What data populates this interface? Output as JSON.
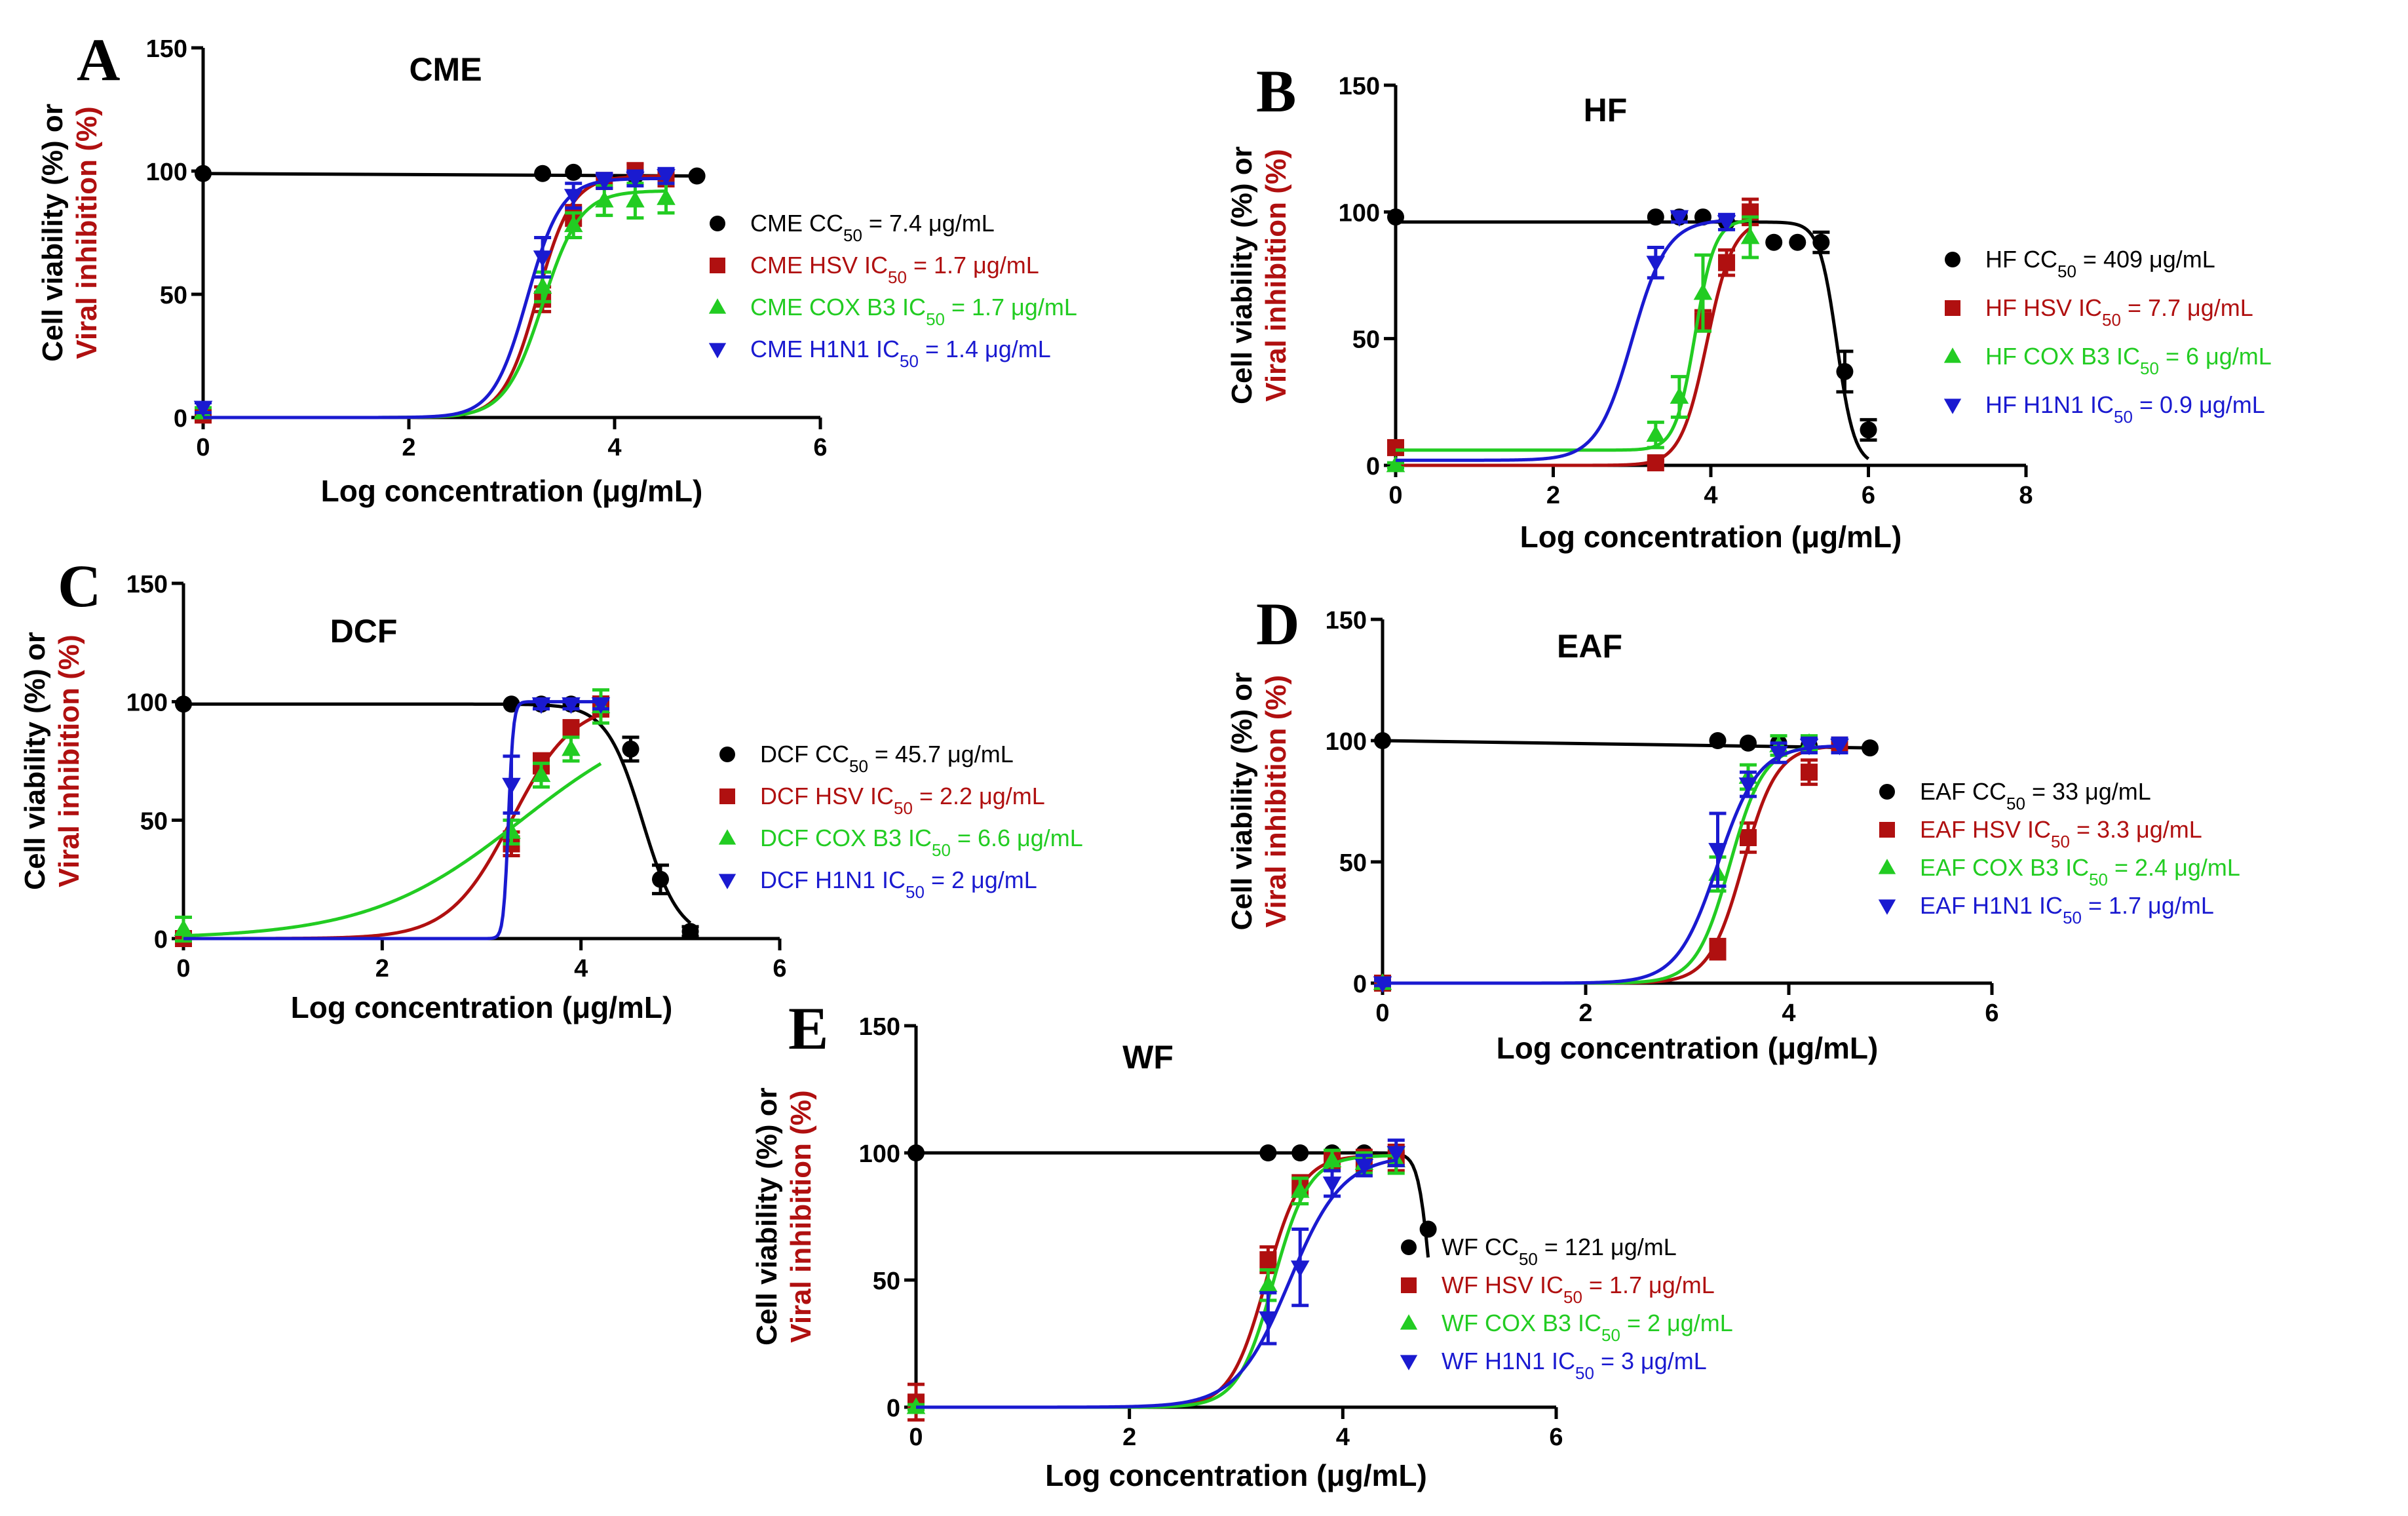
{
  "figure": {
    "ylabel_black": "Cell viability (%) or",
    "ylabel_red": "Viral inhibition (%)",
    "xlabel": "Log concentration  (μg/mL)",
    "colors": {
      "cc50": "#000000",
      "hsv": "#b01010",
      "cox": "#22cc22",
      "h1n1": "#1a1ad0"
    },
    "legend_markers": {
      "cc50": "circle",
      "hsv": "square",
      "cox": "triangle-up",
      "h1n1": "triangle-down"
    }
  },
  "chart_data": [
    {
      "type": "scatter",
      "panel": "A",
      "title": "CME",
      "xlabel": "Log concentration  (μg/mL)",
      "ylabel": "Cell viability (%) or Viral inhibition (%)",
      "xlim": [
        0,
        6
      ],
      "ylim": [
        0,
        150
      ],
      "xticks": [
        0,
        2,
        4,
        6
      ],
      "yticks": [
        0,
        50,
        100,
        150
      ],
      "legend_position": "right",
      "series": [
        {
          "key": "cc50",
          "legend": [
            "CME CC",
            "50",
            " = 7.4 μg/mL"
          ],
          "curve": "plateau",
          "x": [
            0,
            3.3,
            3.6,
            4.2,
            4.5,
            4.8
          ],
          "y": [
            99,
            99,
            99.5,
            98,
            98,
            98
          ]
        },
        {
          "key": "hsv",
          "legend": [
            "CME HSV IC",
            "50",
            " = 1.7 μg/mL"
          ],
          "logic": [
            3.25,
            6,
            0,
            98
          ],
          "x": [
            0,
            3.3,
            3.6,
            3.9,
            4.2,
            4.5
          ],
          "y": [
            1,
            48,
            82,
            96,
            100,
            97
          ],
          "err": [
            1,
            5,
            4,
            3,
            3,
            3
          ]
        },
        {
          "key": "cox",
          "legend": [
            "CME COX B3 IC",
            "50",
            " = 1.7 μg/mL"
          ],
          "logic": [
            3.3,
            5.5,
            0,
            92
          ],
          "x": [
            0,
            3.3,
            3.6,
            3.9,
            4.2,
            4.5
          ],
          "y": [
            2,
            53,
            78,
            88,
            88,
            89
          ],
          "err": [
            2,
            6,
            5,
            6,
            7,
            6
          ]
        },
        {
          "key": "h1n1",
          "legend": [
            "CME H1N1 IC",
            "50",
            " = 1.4 μg/mL"
          ],
          "logic": [
            3.15,
            6,
            0,
            97
          ],
          "x": [
            0,
            3.3,
            3.6,
            3.9,
            4.2,
            4.5
          ],
          "y": [
            4,
            65,
            90,
            96,
            97,
            98
          ],
          "err": [
            2,
            8,
            5,
            3,
            3,
            3
          ]
        }
      ]
    },
    {
      "type": "scatter",
      "panel": "B",
      "title": "HF",
      "xlabel": "Log concentration  (μg/mL)",
      "ylabel": "Cell viability (%) or Viral inhibition (%)",
      "xlim": [
        0,
        8
      ],
      "ylim": [
        0,
        150
      ],
      "xticks": [
        0,
        2,
        4,
        6,
        8
      ],
      "yticks": [
        0,
        50,
        100,
        150
      ],
      "legend_position": "right",
      "series": [
        {
          "key": "cc50",
          "legend": [
            "HF CC",
            "50",
            " = 409 μg/mL"
          ],
          "curve": "drop",
          "drop": [
            5.6,
            9,
            0,
            96
          ],
          "x": [
            0,
            3.3,
            3.6,
            3.9,
            4.2,
            4.8,
            5.1,
            5.4,
            5.7,
            6
          ],
          "y": [
            98,
            98,
            98,
            98,
            96,
            88,
            88,
            88,
            37,
            14
          ],
          "err": [
            0,
            0,
            0,
            0,
            0,
            0,
            0,
            4,
            8,
            4
          ]
        },
        {
          "key": "hsv",
          "legend": [
            " HF HSV IC",
            "50",
            " = 7.7 μg/mL"
          ],
          "logic": [
            3.95,
            6,
            0,
            97
          ],
          "x": [
            0,
            3.3,
            3.9,
            4.2,
            4.5
          ],
          "y": [
            7,
            1,
            57,
            80,
            100
          ],
          "err": [
            2,
            1,
            4,
            5,
            5
          ]
        },
        {
          "key": "cox",
          "legend": [
            "HF COX B3 IC",
            "50",
            " = 6 μg/mL"
          ],
          "logic": [
            3.8,
            8,
            6,
            97
          ],
          "x": [
            0,
            3.3,
            3.6,
            3.9,
            4.5
          ],
          "y": [
            0,
            12,
            27,
            68,
            90
          ],
          "err": [
            1,
            5,
            8,
            15,
            8
          ]
        },
        {
          "key": "h1n1",
          "legend": [
            "HF H1N1 IC",
            "50",
            " = 0.9 μg/mL"
          ],
          "logic": [
            3.0,
            4.5,
            2,
            97
          ],
          "x": [
            3.3,
            3.6,
            4.2
          ],
          "y": [
            80,
            98,
            96
          ],
          "err": [
            6,
            2,
            3
          ]
        }
      ]
    },
    {
      "type": "scatter",
      "panel": "C",
      "title": "DCF",
      "xlabel": "Log concentration  (μg/mL)",
      "ylabel": "Cell viability (%) or Viral inhibition (%)",
      "xlim": [
        0,
        6
      ],
      "ylim": [
        0,
        150
      ],
      "xticks": [
        0,
        2,
        4,
        6
      ],
      "yticks": [
        0,
        50,
        100,
        150
      ],
      "legend_position": "right",
      "series": [
        {
          "key": "cc50",
          "legend": [
            "DCF CC",
            "50",
            " = 45.7 μg/mL"
          ],
          "curve": "drop",
          "drop": [
            4.62,
            5.5,
            0,
            99
          ],
          "x": [
            0,
            3.3,
            3.6,
            3.9,
            4.2,
            4.5,
            4.8,
            5.1
          ],
          "y": [
            99,
            99,
            99,
            99,
            99,
            80,
            25,
            3
          ],
          "err": [
            0,
            0,
            0,
            0,
            0,
            5,
            6,
            2
          ]
        },
        {
          "key": "hsv",
          "legend": [
            "DCF HSV IC",
            "50",
            " = 2.2 μg/mL"
          ],
          "logic": [
            3.3,
            3.2,
            0,
            100
          ],
          "cutoff": 4.2,
          "x": [
            0,
            3.3,
            3.6,
            3.9,
            4.2
          ],
          "y": [
            0,
            40,
            74,
            89,
            98
          ],
          "err": [
            2,
            5,
            4,
            3,
            4
          ]
        },
        {
          "key": "cox",
          "legend": [
            "DCF COX B3 IC",
            "50",
            " = 6.6 μg/mL"
          ],
          "logic": [
            3.4,
            1.3,
            0,
            100
          ],
          "cutoff": 4.2,
          "x": [
            0,
            3.3,
            3.6,
            3.9,
            4.2
          ],
          "y": [
            4,
            45,
            69,
            80,
            98
          ],
          "err": [
            5,
            5,
            5,
            5,
            7
          ]
        },
        {
          "key": "h1n1",
          "legend": [
            "DCF H1N1 IC",
            "50",
            " = 2 μg/mL"
          ],
          "logic": [
            3.27,
            40,
            0,
            100
          ],
          "cutoff": 4.2,
          "x": [
            3.3,
            3.6,
            3.9,
            4.2
          ],
          "y": [
            65,
            99,
            99,
            99
          ],
          "err": [
            12,
            2,
            2,
            2
          ]
        }
      ]
    },
    {
      "type": "scatter",
      "panel": "D",
      "title": "EAF",
      "xlabel": "Log concentration  (μg/mL)",
      "ylabel": "Cell viability (%) or Viral inhibition (%)",
      "xlim": [
        0,
        6
      ],
      "ylim": [
        0,
        150
      ],
      "xticks": [
        0,
        2,
        4,
        6
      ],
      "yticks": [
        0,
        50,
        100,
        150
      ],
      "legend_position": "right",
      "series": [
        {
          "key": "cc50",
          "legend": [
            "EAF CC",
            "50",
            " = 33 μg/mL"
          ],
          "curve": "plateau",
          "x": [
            0,
            3.3,
            3.6,
            3.9,
            4.2,
            4.5,
            4.8
          ],
          "y": [
            100,
            100,
            99,
            99,
            98,
            98,
            97
          ]
        },
        {
          "key": "hsv",
          "legend": [
            "EAF HSV IC",
            "50",
            " = 3.3 μg/mL"
          ],
          "logic": [
            3.55,
            6,
            0,
            98
          ],
          "x": [
            0,
            3.3,
            3.6,
            4.2,
            4.5
          ],
          "y": [
            0,
            14,
            60,
            87,
            98
          ],
          "err": [
            1,
            4,
            6,
            5,
            3
          ]
        },
        {
          "key": "cox",
          "legend": [
            "EAF COX B3 IC",
            "50",
            " = 2.4 μg/mL"
          ],
          "logic": [
            3.42,
            6,
            0,
            98
          ],
          "x": [
            0,
            3.3,
            3.6,
            3.9,
            4.2
          ],
          "y": [
            0,
            45,
            85,
            98,
            99
          ],
          "err": [
            1,
            7,
            5,
            4,
            3
          ]
        },
        {
          "key": "h1n1",
          "legend": [
            "EAF H1N1 IC",
            "50",
            " = 1.7 μg/mL"
          ],
          "logic": [
            3.3,
            5,
            0,
            98
          ],
          "x": [
            0,
            3.3,
            3.6,
            3.9,
            4.2,
            4.5
          ],
          "y": [
            0,
            55,
            82,
            95,
            98,
            98
          ],
          "err": [
            1,
            15,
            5,
            4,
            3,
            3
          ]
        }
      ]
    },
    {
      "type": "scatter",
      "panel": "E",
      "title": "WF",
      "xlabel": "Log concentration  (μg/mL)",
      "ylabel": "Cell viability (%) or Viral inhibition (%)",
      "xlim": [
        0,
        6
      ],
      "ylim": [
        0,
        150
      ],
      "xticks": [
        0,
        2,
        4,
        6
      ],
      "yticks": [
        0,
        50,
        100,
        150
      ],
      "legend_position": "right",
      "series": [
        {
          "key": "cc50",
          "legend": [
            "WF CC",
            "50",
            " = 121 μg/mL"
          ],
          "curve": "drop",
          "drop": [
            4.82,
            18,
            0,
            100
          ],
          "x": [
            0,
            3.3,
            3.6,
            3.9,
            4.2,
            4.5,
            4.8
          ],
          "y": [
            100,
            100,
            100,
            100,
            100,
            100,
            70
          ]
        },
        {
          "key": "hsv",
          "legend": [
            " WF HSV IC",
            "50",
            " = 1.7 μg/mL"
          ],
          "logic": [
            3.28,
            6,
            0,
            99
          ],
          "x": [
            0,
            3.3,
            3.6,
            3.9,
            4.2,
            4.5
          ],
          "y": [
            2,
            58,
            87,
            97,
            97,
            98
          ],
          "err": [
            7,
            5,
            4,
            3,
            4,
            5
          ]
        },
        {
          "key": "cox",
          "legend": [
            "WF COX B3 IC",
            "50",
            " = 2 μg/mL"
          ],
          "logic": [
            3.35,
            6,
            0,
            99
          ],
          "x": [
            0,
            3.3,
            3.6,
            3.9,
            4.2,
            4.5
          ],
          "y": [
            0,
            48,
            85,
            97,
            96,
            97
          ],
          "err": [
            1,
            6,
            5,
            4,
            4,
            5
          ]
        },
        {
          "key": "h1n1",
          "legend": [
            "WF H1N1 IC",
            "50",
            " = 3 μg/mL"
          ],
          "logic": [
            3.5,
            4,
            0,
            99
          ],
          "x": [
            3.3,
            3.6,
            3.9,
            4.2,
            4.5
          ],
          "y": [
            35,
            55,
            88,
            95,
            100
          ],
          "err": [
            10,
            15,
            5,
            4,
            5
          ]
        }
      ]
    }
  ]
}
